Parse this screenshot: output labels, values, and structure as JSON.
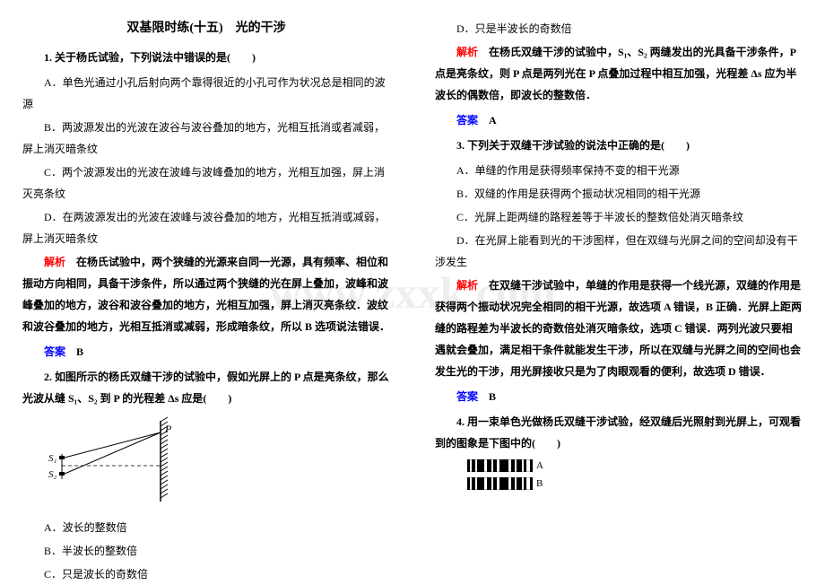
{
  "watermark": "www.zxxk.com",
  "title": "双基限时练(十五)　光的干涉",
  "left": {
    "q1": {
      "stem": "1. 关于杨氏试验，下列说法中错误的是(　　)",
      "A": "A．单色光通过小孔后射向两个靠得很近的小孔可作为状况总是相同的波源",
      "B": "B．两波源发出的光波在波谷与波谷叠加的地方，光相互抵消或者减弱，屏上消灭暗条纹",
      "C": "C．两个波源发出的光波在波峰与波峰叠加的地方，光相互加强，屏上消灭亮条纹",
      "D": "D．在两波源发出的光波在波峰与波谷叠加的地方，光相互抵消或减弱，屏上消灭暗条纹",
      "analysis": "在杨氏试验中，两个狭缝的光源来自同一光源，具有频率、相位和振动方向相同，具备干涉条件，所以通过两个狭缝的光在屏上叠加，波峰和波峰叠加的地方，波谷和波谷叠加的地方，光相互加强，屏上消灭亮条纹．波纹和波谷叠加的地方，光相互抵消或减弱，形成暗条纹，所以 B 选项说法错误．",
      "answer": "B"
    },
    "q2": {
      "stem": "2. 如图所示的杨氏双缝干涉的试验中，假如光屏上的 P 点是亮条纹，那么光波从缝 S₁、S₂ 到 P 的光程差 Δs 应是(　　)",
      "A": "A．波长的整数倍",
      "B": "B．半波长的整数倍",
      "C": "C．只是波长的奇数倍"
    },
    "diagram": {
      "P_label": "P",
      "S1_label": "S₁",
      "S2_label": "S₂",
      "line_color": "#000000",
      "hatch_color": "#000000"
    }
  },
  "right": {
    "q2_cont": {
      "D": "D．只是半波长的奇数倍",
      "analysis": "在杨氏双缝干涉的试验中，S₁、S₂ 两缝发出的光具备干涉条件，P 点是亮条纹，则 P 点是两列光在 P 点叠加过程中相互加强，光程差 Δs 应为半波长的偶数倍，即波长的整数倍．",
      "answer": "A"
    },
    "q3": {
      "stem": "3. 下列关于双缝干涉试验的说法中正确的是(　　)",
      "A": "A．单缝的作用是获得频率保持不变的相干光源",
      "B": "B．双缝的作用是获得两个振动状况相同的相干光源",
      "C": "C．光屏上距两缝的路程差等于半波长的整数倍处消灭暗条纹",
      "D": "D．在光屏上能看到光的干涉图样，但在双缝与光屏之间的空间却没有干涉发生",
      "analysis": "在双缝干涉试验中，单缝的作用是获得一个线光源，双缝的作用是获得两个振动状况完全相同的相干光源，故选项 A 错误，B 正确．光屏上距两缝的路程差为半波长的奇数倍处消灭暗条纹，选项 C 错误．两列光波只要相遇就会叠加，满足相干条件就能发生干涉，所以在双缝与光屏之间的空间也会发生光的干涉，用光屏接收只是为了肉眼观看的便利，故选项 D 错误．",
      "answer": "B"
    },
    "q4": {
      "stem": "4. 用一束单色光做杨氏双缝干涉试验，经双缝后光照射到光屏上，可观看到的图象是下图中的(　　)",
      "labelA": "A",
      "labelB": "B"
    },
    "barcode": {
      "colors": [
        "#000000",
        "#ffffff"
      ],
      "widthsA": [
        3,
        2,
        4,
        2,
        8,
        3,
        5,
        2,
        4,
        3,
        10,
        3,
        4,
        2,
        6,
        2,
        3,
        4,
        3
      ],
      "widthsB": [
        3,
        2,
        4,
        2,
        8,
        3,
        5,
        2,
        4,
        3,
        10,
        3,
        4,
        2,
        6,
        2,
        3,
        4,
        3
      ],
      "height": 14
    }
  }
}
